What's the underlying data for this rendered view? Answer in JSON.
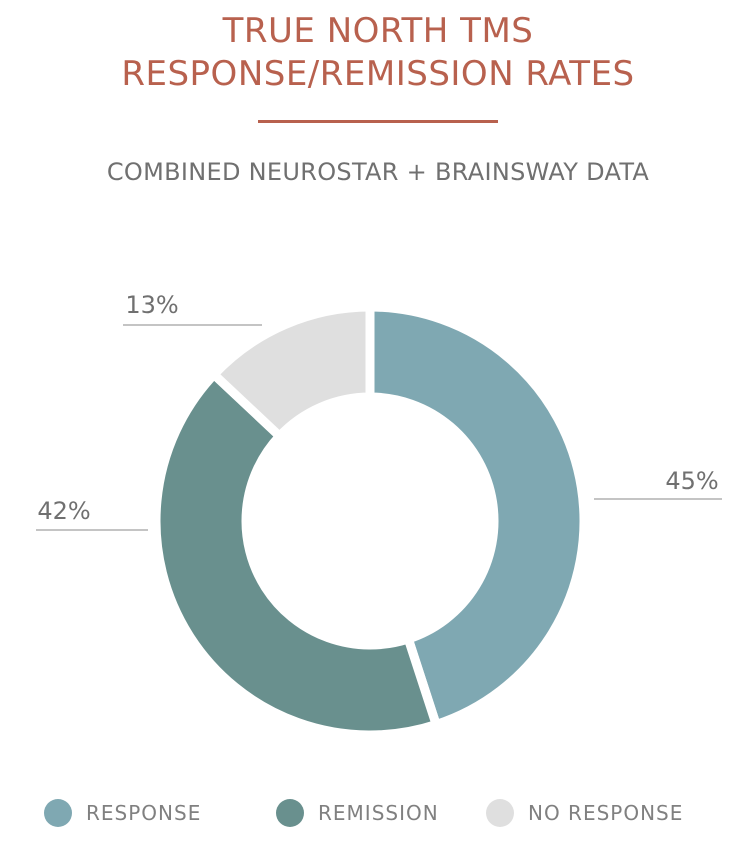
{
  "header": {
    "title_line1": "TRUE NORTH TMS",
    "title_line2": "RESPONSE/REMISSION RATES",
    "subtitle": "COMBINED NEUROSTAR + BRAINSWAY DATA"
  },
  "colors": {
    "title": "#b8614e",
    "response": "#7fa8b2",
    "remission": "#69908e",
    "no_response": "#dfdfdf",
    "label_text": "#707070"
  },
  "chart_data": {
    "type": "pie",
    "donut": true,
    "title": "TRUE NORTH TMS RESPONSE/REMISSION RATES",
    "subtitle": "COMBINED NEUROSTAR + BRAINSWAY DATA",
    "categories": [
      "RESPONSE",
      "REMISSION",
      "NO RESPONSE"
    ],
    "values": [
      45,
      42,
      13
    ],
    "labels": [
      "45%",
      "42%",
      "13%"
    ],
    "unit": "%",
    "legend_position": "bottom"
  },
  "legend": {
    "items": [
      {
        "label": "RESPONSE",
        "color": "#7fa8b2"
      },
      {
        "label": "REMISSION",
        "color": "#69908e"
      },
      {
        "label": "NO RESPONSE",
        "color": "#dfdfdf"
      }
    ]
  }
}
